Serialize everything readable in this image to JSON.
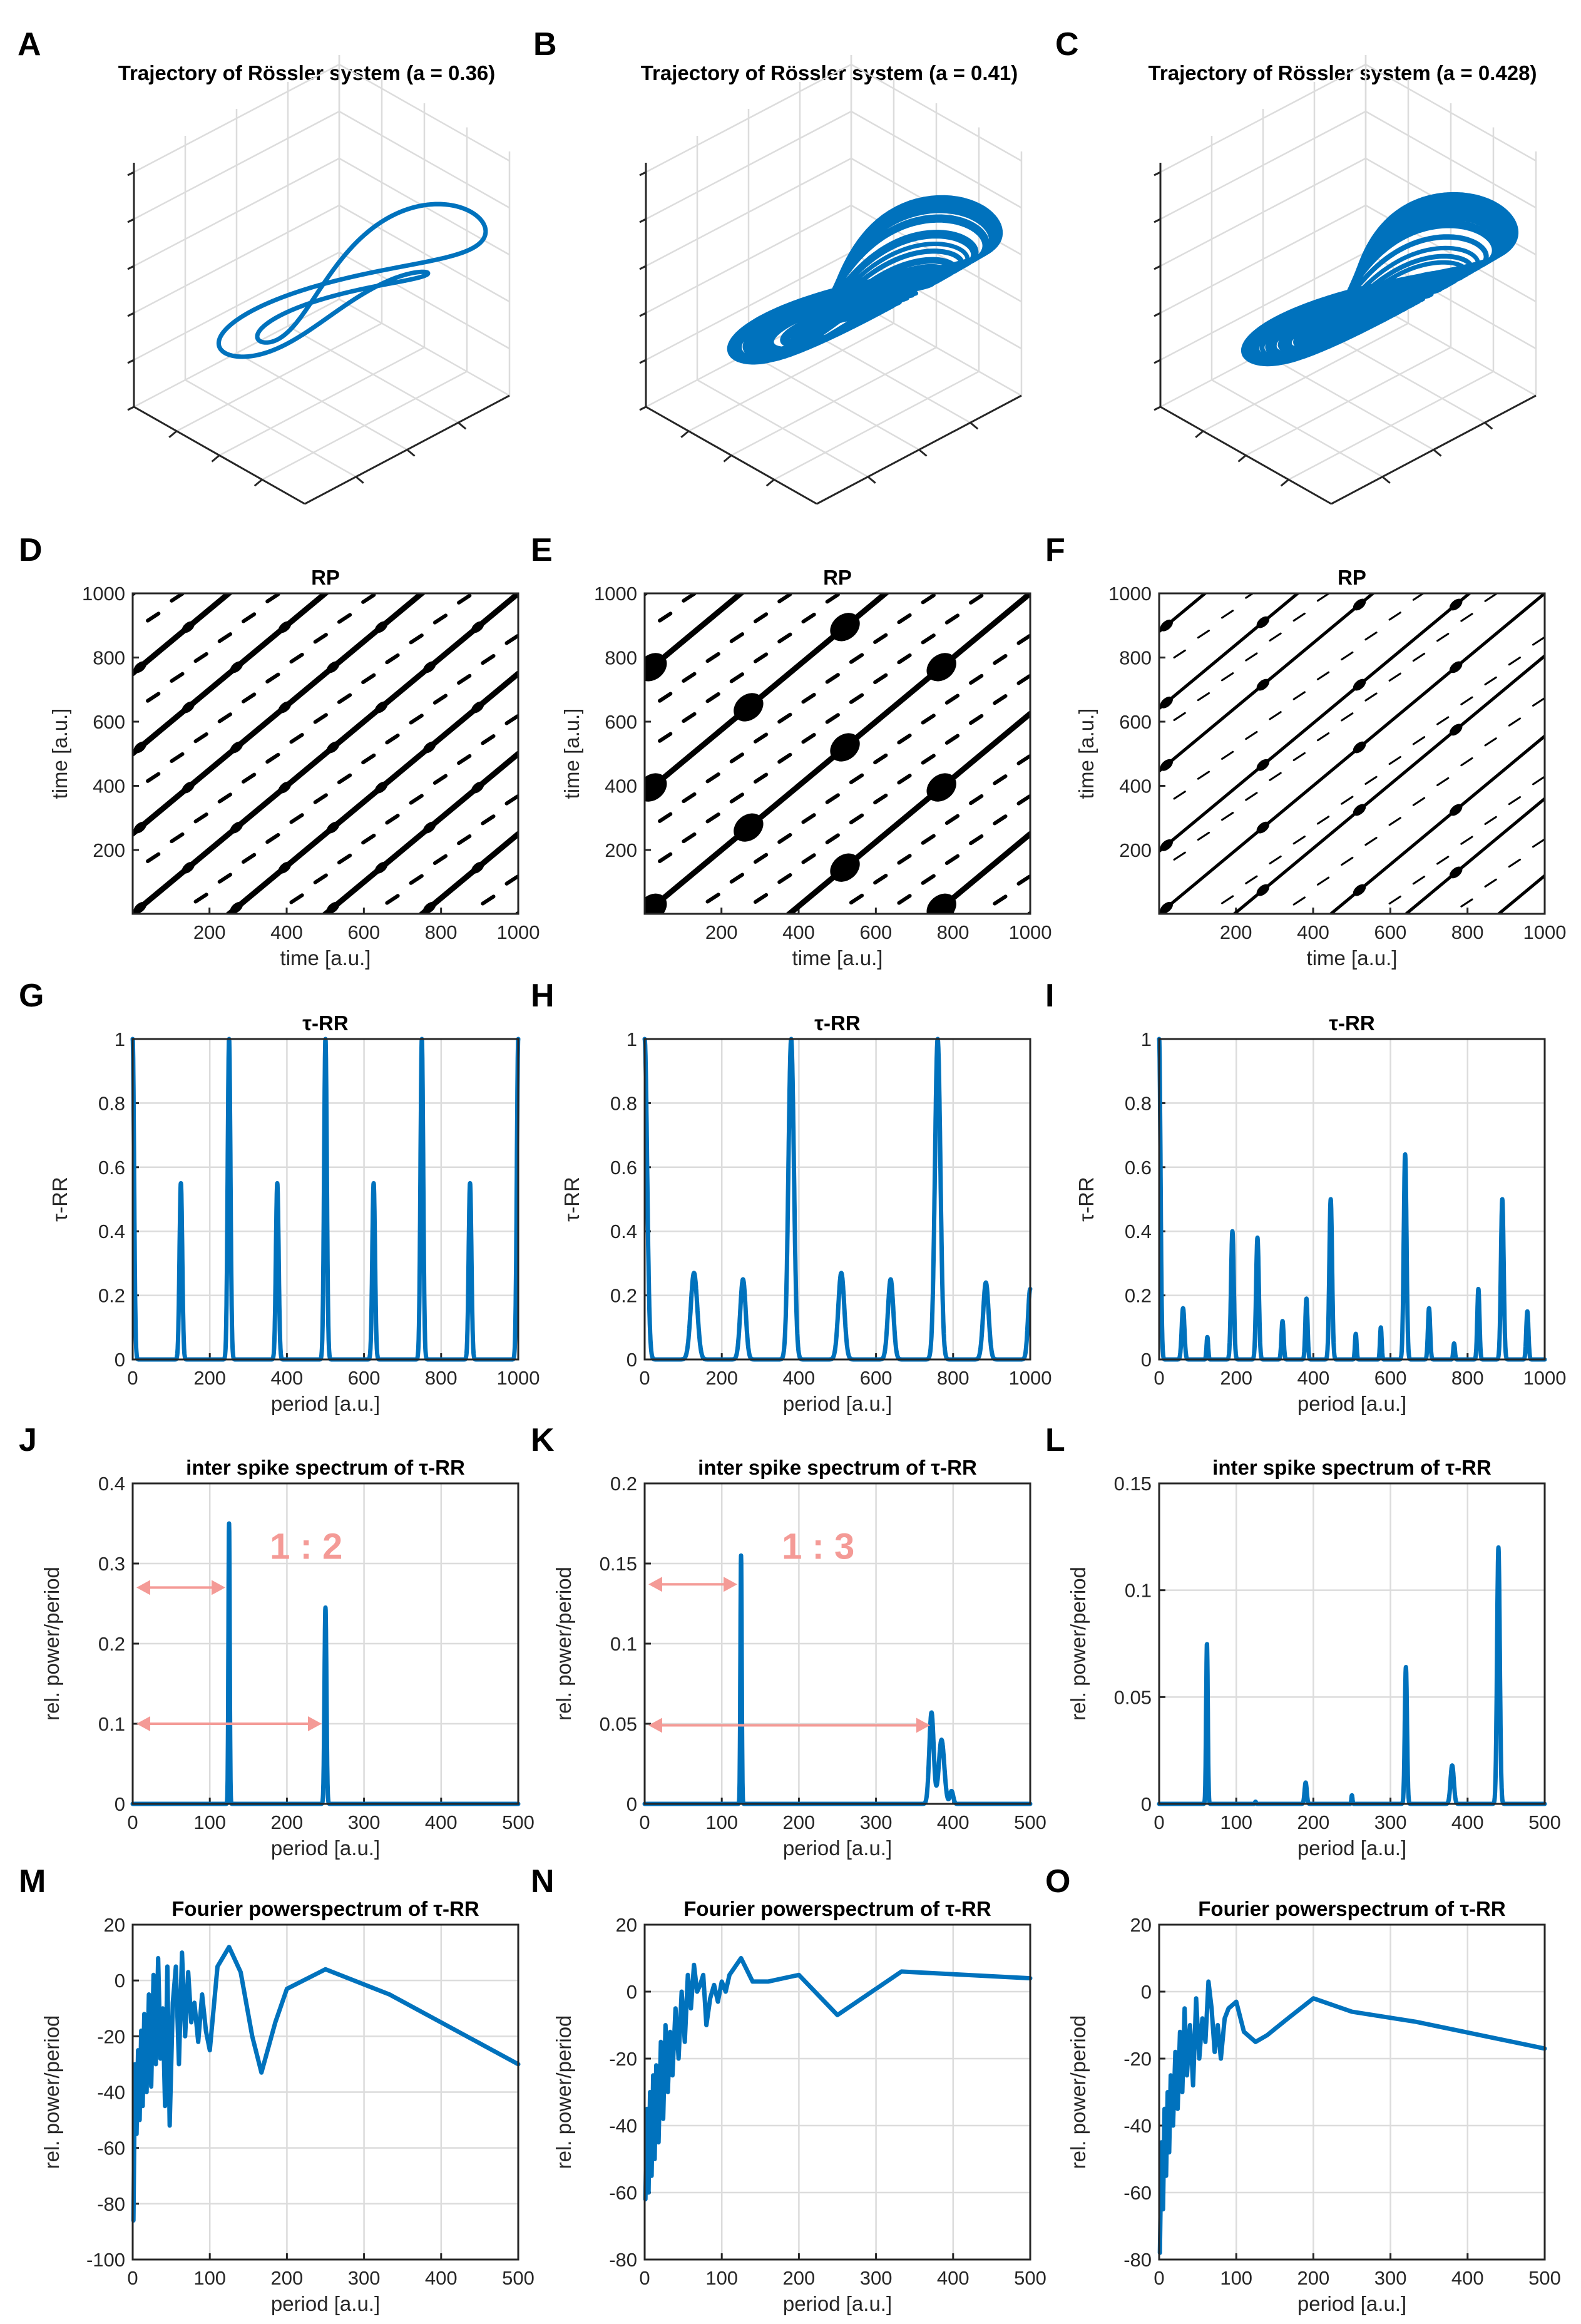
{
  "colors": {
    "trace": "#0072bd",
    "annotation": "#f49a96",
    "grid": "#dcdcdc",
    "axis": "#262626"
  },
  "panels": [
    {
      "label": "A",
      "title": "Trajectory of Rössler system (a = 0.36)"
    },
    {
      "label": "B",
      "title": "Trajectory of Rössler system (a = 0.41)"
    },
    {
      "label": "C",
      "title": "Trajectory of Rössler system (a = 0.428)"
    },
    {
      "label": "D",
      "title": "RP",
      "xlabel": "time [a.u.]",
      "ylabel": "time [a.u.]"
    },
    {
      "label": "E",
      "title": "RP",
      "xlabel": "time [a.u.]",
      "ylabel": "time [a.u.]"
    },
    {
      "label": "F",
      "title": "RP",
      "xlabel": "time [a.u.]",
      "ylabel": "time [a.u.]"
    },
    {
      "label": "G",
      "title": "τ-RR",
      "xlabel": "period [a.u.]",
      "ylabel": "τ-RR"
    },
    {
      "label": "H",
      "title": "τ-RR",
      "xlabel": "period [a.u.]",
      "ylabel": "τ-RR"
    },
    {
      "label": "I",
      "title": "τ-RR",
      "xlabel": "period [a.u.]",
      "ylabel": "τ-RR"
    },
    {
      "label": "J",
      "title": "inter spike spectrum of τ-RR",
      "xlabel": "period [a.u.]",
      "ylabel": "rel. power/period",
      "ratio": "1 : 2"
    },
    {
      "label": "K",
      "title": "inter spike spectrum of τ-RR",
      "xlabel": "period [a.u.]",
      "ylabel": "rel. power/period",
      "ratio": "1 : 3"
    },
    {
      "label": "L",
      "title": "inter spike spectrum of τ-RR",
      "xlabel": "period [a.u.]",
      "ylabel": "rel. power/period"
    },
    {
      "label": "M",
      "title": "Fourier powerspectrum of τ-RR",
      "xlabel": "period [a.u.]",
      "ylabel": "rel. power/period"
    },
    {
      "label": "N",
      "title": "Fourier powerspectrum of τ-RR",
      "xlabel": "period [a.u.]",
      "ylabel": "rel. power/period"
    },
    {
      "label": "O",
      "title": "Fourier powerspectrum of τ-RR",
      "xlabel": "period [a.u.]",
      "ylabel": "rel. power/period"
    }
  ],
  "chart_data": [
    {
      "panel": "A",
      "type": "line3d",
      "title": "Trajectory of Rössler system (a = 0.36)",
      "parameter_a": 0.36,
      "loops": 2
    },
    {
      "panel": "B",
      "type": "line3d",
      "title": "Trajectory of Rössler system (a = 0.41)",
      "parameter_a": 0.41,
      "loops": 3
    },
    {
      "panel": "C",
      "type": "line3d",
      "title": "Trajectory of Rössler system (a = 0.428)",
      "parameter_a": 0.428,
      "loops": "chaotic"
    },
    {
      "panel": "D",
      "type": "heatmap",
      "title": "RP",
      "xlabel": "time [a.u.]",
      "ylabel": "time [a.u.]",
      "xlim": [
        1,
        1000
      ],
      "ylim": [
        1,
        1000
      ],
      "xticks": [
        200,
        400,
        600,
        800,
        1000
      ],
      "yticks": [
        200,
        400,
        600,
        800,
        1000
      ],
      "diagonal_offsets": [
        -1000,
        -750,
        -500,
        -250,
        0,
        250,
        500,
        750,
        1000
      ],
      "secondary_offsets": [
        -875,
        -625,
        -375,
        -125,
        125,
        375,
        625,
        875
      ]
    },
    {
      "panel": "E",
      "type": "heatmap",
      "title": "RP",
      "xlabel": "time [a.u.]",
      "ylabel": "time [a.u.]",
      "xlim": [
        1,
        1000
      ],
      "ylim": [
        1,
        1000
      ],
      "xticks": [
        200,
        400,
        600,
        800,
        1000
      ],
      "yticks": [
        200,
        400,
        600,
        800,
        1000
      ],
      "diagonal_offsets": [
        -1000,
        -750,
        -375,
        0,
        375,
        750,
        1000
      ],
      "secondary_offsets": [
        -875,
        -625,
        -500,
        -250,
        -125,
        125,
        250,
        500,
        625,
        875
      ]
    },
    {
      "panel": "F",
      "type": "heatmap",
      "title": "RP",
      "xlabel": "time [a.u.]",
      "ylabel": "time [a.u.]",
      "xlim": [
        1,
        1000
      ],
      "ylim": [
        1,
        1000
      ],
      "xticks": [
        200,
        400,
        600,
        800,
        1000
      ],
      "yticks": [
        200,
        400,
        600,
        800,
        1000
      ],
      "diagonal_offsets": [
        -880,
        -640,
        -445,
        -195,
        0,
        195,
        445,
        640,
        880
      ],
      "secondary_offsets": [
        -760,
        -565,
        -320,
        -130,
        130,
        320,
        565,
        760
      ]
    },
    {
      "panel": "G",
      "type": "line",
      "title": "τ-RR",
      "xlabel": "period [a.u.]",
      "ylabel": "τ-RR",
      "xlim": [
        0,
        1000
      ],
      "ylim": [
        0,
        1
      ],
      "xticks": [
        0,
        200,
        400,
        600,
        800,
        1000
      ],
      "yticks": [
        0,
        0.2,
        0.4,
        0.6,
        0.8,
        1
      ],
      "baseline": 0,
      "peaks": [
        [
          0,
          1,
          5
        ],
        [
          125,
          0.55,
          5
        ],
        [
          250,
          1,
          5
        ],
        [
          375,
          0.55,
          5
        ],
        [
          500,
          1,
          5
        ],
        [
          625,
          0.55,
          5
        ],
        [
          750,
          1,
          5
        ],
        [
          875,
          0.55,
          5
        ],
        [
          1000,
          1,
          5
        ]
      ]
    },
    {
      "panel": "H",
      "type": "line",
      "title": "τ-RR",
      "xlabel": "period [a.u.]",
      "ylabel": "τ-RR",
      "xlim": [
        0,
        1000
      ],
      "ylim": [
        0,
        1
      ],
      "xticks": [
        0,
        200,
        400,
        600,
        800,
        1000
      ],
      "yticks": [
        0,
        0.2,
        0.4,
        0.6,
        0.8,
        1
      ],
      "baseline": 0,
      "peaks": [
        [
          0,
          1,
          9
        ],
        [
          128,
          0.27,
          12
        ],
        [
          255,
          0.25,
          10
        ],
        [
          380,
          1,
          10
        ],
        [
          510,
          0.27,
          11
        ],
        [
          638,
          0.25,
          10
        ],
        [
          760,
          1,
          10
        ],
        [
          885,
          0.24,
          10
        ],
        [
          1000,
          0.22,
          8
        ]
      ]
    },
    {
      "panel": "I",
      "type": "line",
      "title": "τ-RR",
      "xlabel": "period [a.u.]",
      "ylabel": "τ-RR",
      "xlim": [
        0,
        1000
      ],
      "ylim": [
        0,
        1
      ],
      "xticks": [
        0,
        200,
        400,
        600,
        800,
        1000
      ],
      "yticks": [
        0,
        0.2,
        0.4,
        0.6,
        0.8,
        1
      ],
      "baseline": 0,
      "peaks": [
        [
          0,
          1,
          5
        ],
        [
          62,
          0.16,
          5
        ],
        [
          125,
          0.07,
          3
        ],
        [
          190,
          0.4,
          5
        ],
        [
          255,
          0.38,
          5
        ],
        [
          320,
          0.12,
          4
        ],
        [
          382,
          0.19,
          4
        ],
        [
          445,
          0.5,
          5
        ],
        [
          510,
          0.08,
          3
        ],
        [
          575,
          0.1,
          3
        ],
        [
          638,
          0.64,
          5
        ],
        [
          700,
          0.16,
          4
        ],
        [
          765,
          0.05,
          3
        ],
        [
          828,
          0.22,
          4
        ],
        [
          890,
          0.5,
          5
        ],
        [
          955,
          0.15,
          4
        ]
      ]
    },
    {
      "panel": "J",
      "type": "line",
      "title": "inter spike spectrum of τ-RR",
      "xlabel": "period [a.u.]",
      "ylabel": "rel. power/period",
      "xlim": [
        0,
        500
      ],
      "ylim": [
        0,
        0.4
      ],
      "xticks": [
        0,
        100,
        200,
        300,
        400,
        500
      ],
      "yticks": [
        0,
        0.1,
        0.2,
        0.3,
        0.4
      ],
      "baseline": 0,
      "peaks": [
        [
          125,
          0.35,
          1.2
        ],
        [
          250,
          0.245,
          1.8
        ]
      ],
      "annotation": {
        "text": "1 : 2",
        "arrows": [
          {
            "from": 0,
            "to": 125,
            "y": 0.27
          },
          {
            "from": 0,
            "to": 250,
            "y": 0.1
          }
        ]
      }
    },
    {
      "panel": "K",
      "type": "line",
      "title": "inter spike spectrum of τ-RR",
      "xlabel": "period [a.u.]",
      "ylabel": "rel. power/period",
      "xlim": [
        0,
        500
      ],
      "ylim": [
        0,
        0.2
      ],
      "xticks": [
        0,
        100,
        200,
        300,
        400,
        500
      ],
      "yticks": [
        0,
        0.05,
        0.1,
        0.15,
        0.2
      ],
      "baseline": 0,
      "peaks": [
        [
          125,
          0.155,
          1.2
        ],
        [
          372,
          0.057,
          4
        ],
        [
          385,
          0.04,
          5
        ],
        [
          398,
          0.008,
          3
        ]
      ],
      "annotation": {
        "text": "1 : 3",
        "arrows": [
          {
            "from": 0,
            "to": 125,
            "y": 0.137
          },
          {
            "from": 0,
            "to": 375,
            "y": 0.049
          }
        ]
      }
    },
    {
      "panel": "L",
      "type": "line",
      "title": "inter spike spectrum of τ-RR",
      "xlabel": "period [a.u.]",
      "ylabel": "rel. power/period",
      "xlim": [
        0,
        500
      ],
      "ylim": [
        0,
        0.15
      ],
      "xticks": [
        0,
        100,
        200,
        300,
        400,
        500
      ],
      "yticks": [
        0,
        0.05,
        0.1,
        0.15
      ],
      "baseline": 0,
      "peaks": [
        [
          62,
          0.075,
          1.5
        ],
        [
          125,
          0.001,
          1
        ],
        [
          190,
          0.01,
          2
        ],
        [
          250,
          0.004,
          1
        ],
        [
          320,
          0.064,
          2
        ],
        [
          380,
          0.018,
          3
        ],
        [
          440,
          0.12,
          2.5
        ]
      ]
    },
    {
      "panel": "M",
      "type": "line",
      "title": "Fourier powerspectrum of τ-RR",
      "xlabel": "period [a.u.]",
      "ylabel": "rel. power/period",
      "xlim": [
        0,
        500
      ],
      "ylim": [
        -100,
        20
      ],
      "xticks": [
        0,
        100,
        200,
        300,
        400,
        500
      ],
      "yticks": [
        -100,
        -80,
        -60,
        -40,
        -20,
        0,
        20
      ],
      "x": [
        1,
        3,
        5,
        7,
        9,
        11,
        13,
        15,
        18,
        21,
        24,
        27,
        30,
        33,
        36,
        39,
        42,
        45,
        48,
        52,
        56,
        60,
        64,
        68,
        72,
        76,
        80,
        85,
        90,
        95,
        100,
        110,
        125,
        140,
        155,
        167,
        185,
        200,
        250,
        333,
        500
      ],
      "values": [
        -86,
        -30,
        -55,
        -25,
        -50,
        -18,
        -45,
        -12,
        -40,
        -5,
        -38,
        2,
        -30,
        8,
        -28,
        -10,
        -45,
        5,
        -52,
        -8,
        5,
        -30,
        10,
        -20,
        3,
        -15,
        -8,
        -22,
        -5,
        -18,
        -25,
        5,
        12,
        3,
        -20,
        -33,
        -15,
        -3,
        4,
        -5,
        -30
      ]
    },
    {
      "panel": "N",
      "type": "line",
      "title": "Fourier powerspectrum of τ-RR",
      "xlabel": "period [a.u.]",
      "ylabel": "rel. power/period",
      "xlim": [
        0,
        500
      ],
      "ylim": [
        -80,
        20
      ],
      "xticks": [
        0,
        100,
        200,
        300,
        400,
        500
      ],
      "yticks": [
        -80,
        -60,
        -40,
        -20,
        0,
        20
      ],
      "x": [
        1,
        3,
        5,
        7,
        9,
        11,
        13,
        15,
        18,
        21,
        24,
        27,
        30,
        33,
        36,
        40,
        44,
        48,
        52,
        56,
        60,
        64,
        68,
        72,
        76,
        80,
        85,
        90,
        95,
        100,
        105,
        110,
        125,
        140,
        160,
        200,
        250,
        333,
        500
      ],
      "values": [
        -62,
        -35,
        -60,
        -30,
        -55,
        -25,
        -50,
        -22,
        -45,
        -15,
        -38,
        -10,
        -30,
        -12,
        -25,
        -5,
        -20,
        0,
        -15,
        5,
        -5,
        8,
        0,
        2,
        5,
        -10,
        -2,
        2,
        -3,
        3,
        0,
        5,
        10,
        3,
        3,
        5,
        -7,
        6,
        4
      ]
    },
    {
      "panel": "O",
      "type": "line",
      "title": "Fourier powerspectrum of τ-RR",
      "xlabel": "period [a.u.]",
      "ylabel": "rel. power/period",
      "xlim": [
        0,
        500
      ],
      "ylim": [
        -80,
        20
      ],
      "xticks": [
        0,
        100,
        200,
        300,
        400,
        500
      ],
      "yticks": [
        -80,
        -60,
        -40,
        -20,
        0,
        20
      ],
      "x": [
        1,
        3,
        5,
        7,
        9,
        11,
        13,
        15,
        18,
        21,
        24,
        27,
        30,
        33,
        36,
        40,
        44,
        48,
        52,
        56,
        60,
        64,
        68,
        72,
        76,
        80,
        85,
        90,
        100,
        110,
        125,
        140,
        167,
        200,
        250,
        333,
        500
      ],
      "values": [
        -78,
        -45,
        -65,
        -35,
        -55,
        -30,
        -48,
        -25,
        -40,
        -18,
        -35,
        -12,
        -30,
        -5,
        -25,
        -10,
        -28,
        -2,
        -20,
        -8,
        -15,
        3,
        -5,
        -18,
        -10,
        -20,
        -8,
        -5,
        -3,
        -12,
        -15,
        -13,
        -8,
        -2,
        -6,
        -9,
        -17
      ]
    }
  ]
}
